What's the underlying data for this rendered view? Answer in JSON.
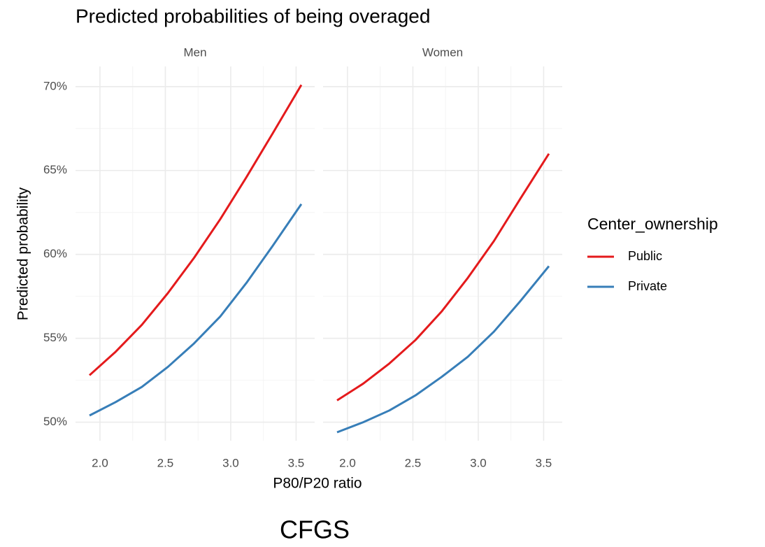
{
  "chart_data": {
    "type": "line",
    "title": "Predicted probabilities of being overaged",
    "xlabel": "P80/P20 ratio",
    "ylabel": "Predicted probability",
    "legend_title": "Center_ownership",
    "caption": "CFGS",
    "x": [
      1.92,
      2.12,
      2.32,
      2.52,
      2.72,
      2.92,
      3.12,
      3.32,
      3.54
    ],
    "xlim": [
      1.813,
      3.642
    ],
    "xticks": [
      {
        "value": 2,
        "label": "2.0"
      },
      2.5,
      {
        "value": 3,
        "label": "3.0"
      },
      3.5
    ],
    "minor_xticks": [
      2.25,
      2.75,
      3.25
    ],
    "ylim": [
      48.9,
      71.2
    ],
    "yticks": [
      {
        "value": 50,
        "label": "50%"
      },
      {
        "value": 55,
        "label": "55%"
      },
      {
        "value": 60,
        "label": "60%"
      },
      {
        "value": 65,
        "label": "65%"
      },
      {
        "value": 70,
        "label": "70%"
      }
    ],
    "minor_yticks": [
      52.5,
      57.5,
      62.5,
      67.5
    ],
    "grid": true,
    "legend": "right",
    "facets": [
      {
        "name": "Men",
        "series": [
          {
            "name": "Public",
            "color": "#e41a1c",
            "values": [
              52.8,
              54.2,
              55.8,
              57.7,
              59.8,
              62.1,
              64.6,
              67.2,
              70.1
            ]
          },
          {
            "name": "Private",
            "color": "#377eb8",
            "values": [
              50.4,
              51.2,
              52.1,
              53.3,
              54.7,
              56.3,
              58.3,
              60.5,
              63.0
            ]
          }
        ]
      },
      {
        "name": "Women",
        "series": [
          {
            "name": "Public",
            "color": "#e41a1c",
            "values": [
              51.3,
              52.3,
              53.5,
              54.9,
              56.6,
              58.6,
              60.8,
              63.3,
              66.0
            ]
          },
          {
            "name": "Private",
            "color": "#377eb8",
            "values": [
              49.4,
              50.0,
              50.7,
              51.6,
              52.7,
              53.9,
              55.4,
              57.2,
              59.3
            ]
          }
        ]
      }
    ]
  }
}
